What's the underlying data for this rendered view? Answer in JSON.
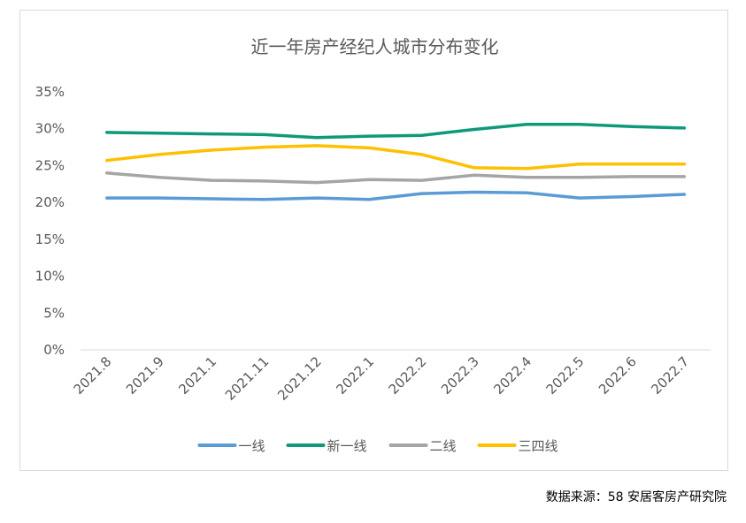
{
  "chart_data": {
    "type": "line",
    "title": "近一年房产经纪人城市分布变化",
    "xlabel": "",
    "ylabel": "",
    "categories": [
      "2021.8",
      "2021.9",
      "2021.1",
      "2021.11",
      "2021.12",
      "2022.1",
      "2022.2",
      "2022.3",
      "2022.4",
      "2022.5",
      "2022.6",
      "2022.7"
    ],
    "y_ticks": [
      "0%",
      "5%",
      "10%",
      "15%",
      "20%",
      "25%",
      "30%",
      "35%"
    ],
    "ylim": [
      0,
      35
    ],
    "grid": "none",
    "legend_position": "bottom",
    "series": [
      {
        "name": "一线",
        "color": "#5b9bd5",
        "values": [
          20.6,
          20.6,
          20.5,
          20.4,
          20.6,
          20.4,
          21.2,
          21.4,
          21.3,
          20.6,
          20.8,
          21.1
        ]
      },
      {
        "name": "新一线",
        "color": "#0e9a7a",
        "values": [
          29.5,
          29.4,
          29.3,
          29.2,
          28.8,
          29.0,
          29.1,
          29.9,
          30.6,
          30.6,
          30.3,
          30.1
        ]
      },
      {
        "name": "二线",
        "color": "#a5a5a5",
        "values": [
          24.0,
          23.4,
          23.0,
          22.9,
          22.7,
          23.1,
          23.0,
          23.7,
          23.4,
          23.4,
          23.5,
          23.5
        ]
      },
      {
        "name": "三四线",
        "color": "#ffc000",
        "values": [
          25.7,
          26.5,
          27.1,
          27.5,
          27.7,
          27.4,
          26.5,
          24.7,
          24.6,
          25.2,
          25.2,
          25.2
        ]
      }
    ]
  },
  "source_text": "数据来源：58 安居客房产研究院"
}
